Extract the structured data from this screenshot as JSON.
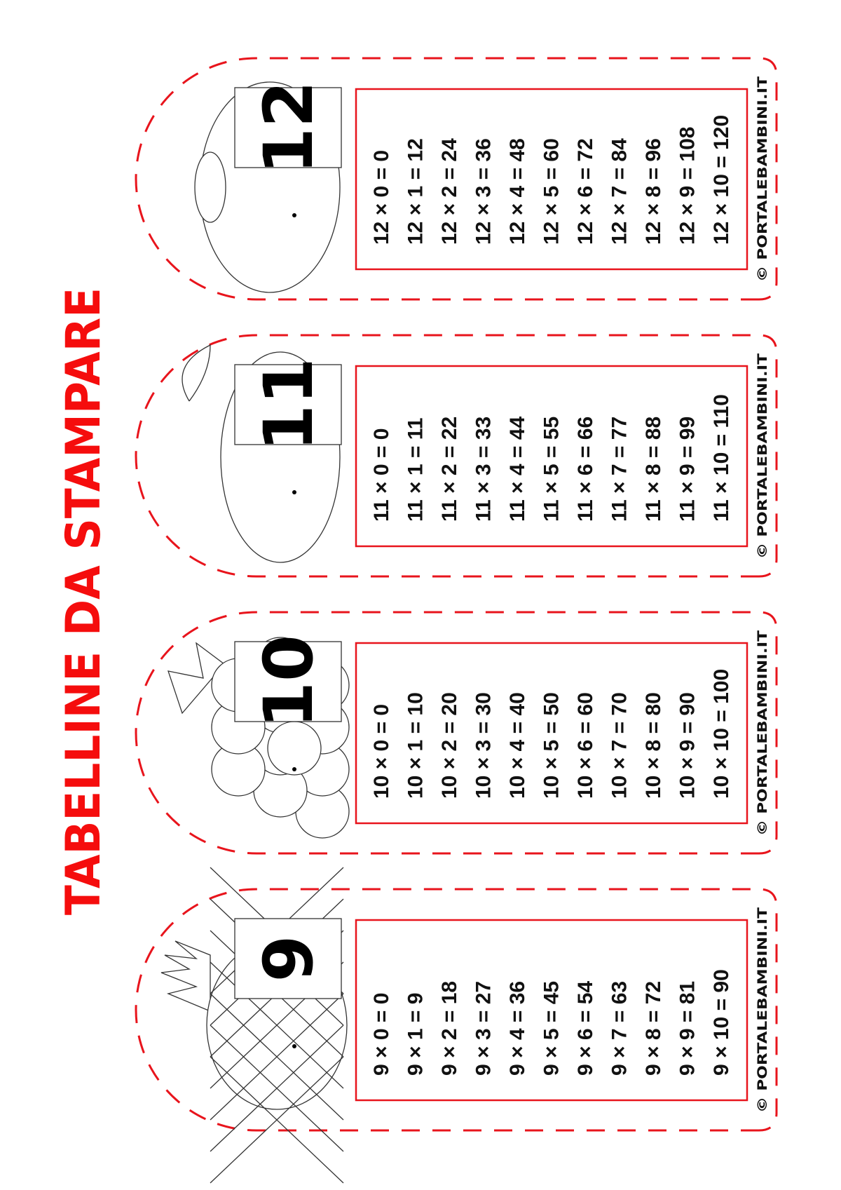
{
  "title": "TABELLINE DA STAMPARE",
  "accent_color": "#e8141c",
  "copyright": "© PORTALEBAMBINI.IT",
  "bookmarks": [
    {
      "number": "9",
      "fruit": "pineapple",
      "rows": [
        "9 × 0 = 0",
        "9 × 1 = 9",
        "9 × 2 = 18",
        "9 × 3 = 27",
        "9 × 4 = 36",
        "9 × 5 = 45",
        "9 × 6 = 54",
        "9 × 7 = 63",
        "9 × 8 = 72",
        "9 × 9 = 81",
        "9 × 10 = 90"
      ]
    },
    {
      "number": "10",
      "fruit": "grapes",
      "rows": [
        "10 × 0 = 0",
        "10 × 1 = 10",
        "10 × 2 = 20",
        "10 × 3 = 30",
        "10 × 4 = 40",
        "10 × 5 = 50",
        "10 × 6 = 60",
        "10 × 7 = 70",
        "10 × 8 = 80",
        "10 × 9 = 90",
        "10 × 10 = 100"
      ]
    },
    {
      "number": "11",
      "fruit": "apple",
      "rows": [
        "11 × 0 = 0",
        "11 × 1 = 11",
        "11 × 2 = 22",
        "11 × 3 = 33",
        "11 × 4 = 44",
        "11 × 5 = 55",
        "11 × 6 = 66",
        "11 × 7 = 77",
        "11 × 8 = 88",
        "11 × 9 = 99",
        "11 × 10 = 110"
      ]
    },
    {
      "number": "12",
      "fruit": "melon",
      "rows": [
        "12 × 0 = 0",
        "12 × 1 = 12",
        "12 × 2 = 24",
        "12 × 3 = 36",
        "12 × 4 = 48",
        "12 × 5 = 60",
        "12 × 6 = 72",
        "12 × 7 = 84",
        "12 × 8 = 96",
        "12 × 9 = 108",
        "12 × 10 = 120"
      ]
    }
  ]
}
